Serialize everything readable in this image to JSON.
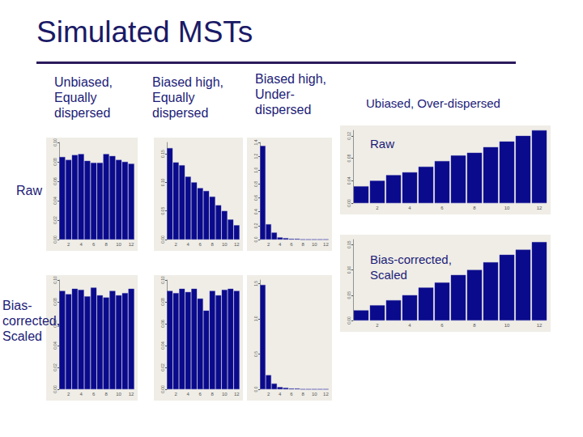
{
  "slide": {
    "title": "Simulated MSTs",
    "column_headers": [
      "Unbiased, Equally dispersed",
      "Biased high, Equally dispersed",
      "Biased high, Under-dispersed",
      "Ubiased, Over-dispersed"
    ],
    "row_labels": [
      "Raw",
      "Bias-corrected, Scaled"
    ],
    "panel_labels": [
      "Raw",
      "Bias-corrected, Scaled"
    ]
  },
  "chart_data": [
    {
      "type": "bar",
      "color": "#0a0a8c",
      "grid": false,
      "categories": [
        null,
        "2",
        null,
        "4",
        null,
        "6",
        null,
        "8",
        null,
        "10",
        null,
        "12"
      ],
      "values": [
        0.085,
        0.082,
        0.087,
        0.088,
        0.081,
        0.079,
        0.079,
        0.088,
        0.086,
        0.082,
        0.08,
        0.078
      ],
      "ylim": [
        0,
        0.1
      ],
      "yticks": [
        {
          "value": 0,
          "label": "0.00"
        },
        {
          "value": 0.02,
          "label": "0.02"
        },
        {
          "value": 0.04,
          "label": "0.04"
        },
        {
          "value": 0.06,
          "label": "0.06"
        },
        {
          "value": 0.08,
          "label": "0.08"
        },
        {
          "value": 0.1,
          "label": "0.10"
        }
      ]
    },
    {
      "type": "bar",
      "color": "#0a0a8c",
      "grid": false,
      "categories": [
        null,
        "2",
        null,
        "4",
        null,
        "6",
        null,
        "8",
        null,
        "10",
        null,
        "12"
      ],
      "values": [
        0.16,
        0.135,
        0.13,
        0.11,
        0.1,
        0.09,
        0.085,
        0.075,
        0.06,
        0.05,
        0.035,
        0.025
      ],
      "ylim": [
        0,
        0.17
      ],
      "yticks": [
        {
          "value": 0,
          "label": "0.00"
        },
        {
          "value": 0.05,
          "label": "0.05"
        },
        {
          "value": 0.1,
          "label": "0.10"
        },
        {
          "value": 0.15,
          "label": "0.15"
        }
      ]
    },
    {
      "type": "bar",
      "color": "#0a0a8c",
      "grid": false,
      "categories": [
        null,
        "2",
        null,
        "4",
        null,
        "6",
        null,
        "8",
        null,
        "10",
        null,
        "12"
      ],
      "values": [
        1.35,
        0.22,
        0.1,
        0.03,
        0.02,
        0.01,
        0.01,
        0,
        0,
        0,
        0,
        0
      ],
      "ylim": [
        0,
        1.4
      ],
      "yticks": [
        {
          "value": 0,
          "label": "0.0"
        },
        {
          "value": 0.2,
          "label": "0.2"
        },
        {
          "value": 0.4,
          "label": "0.4"
        },
        {
          "value": 0.6,
          "label": "0.6"
        },
        {
          "value": 0.8,
          "label": "0.8"
        },
        {
          "value": 1,
          "label": "1.0"
        },
        {
          "value": 1.2,
          "label": "1.2"
        },
        {
          "value": 1.4,
          "label": "1.4"
        }
      ]
    },
    {
      "type": "bar",
      "color": "#0a0a8c",
      "grid": false,
      "categories": [
        null,
        "2",
        null,
        "4",
        null,
        "6",
        null,
        "8",
        null,
        "10",
        null,
        "12"
      ],
      "values": [
        0.09,
        0.087,
        0.092,
        0.091,
        0.085,
        0.093,
        0.086,
        0.084,
        0.09,
        0.086,
        0.088,
        0.092
      ],
      "ylim": [
        0,
        0.1
      ],
      "yticks": [
        {
          "value": 0,
          "label": "0.00"
        },
        {
          "value": 0.02,
          "label": "0.02"
        },
        {
          "value": 0.04,
          "label": "0.04"
        },
        {
          "value": 0.06,
          "label": "0.06"
        },
        {
          "value": 0.08,
          "label": "0.08"
        },
        {
          "value": 0.1,
          "label": "0.10"
        }
      ]
    },
    {
      "type": "bar",
      "color": "#0a0a8c",
      "grid": false,
      "categories": [
        null,
        "2",
        null,
        "4",
        null,
        "6",
        null,
        "8",
        null,
        "10",
        null,
        "12"
      ],
      "values": [
        0.09,
        0.088,
        0.092,
        0.089,
        0.092,
        0.083,
        0.072,
        0.09,
        0.086,
        0.091,
        0.092,
        0.09
      ],
      "ylim": [
        0,
        0.1
      ],
      "yticks": [
        {
          "value": 0,
          "label": "0.00"
        },
        {
          "value": 0.02,
          "label": "0.02"
        },
        {
          "value": 0.04,
          "label": "0.04"
        },
        {
          "value": 0.06,
          "label": "0.06"
        },
        {
          "value": 0.08,
          "label": "0.08"
        },
        {
          "value": 0.1,
          "label": "0.10"
        }
      ]
    },
    {
      "type": "bar",
      "color": "#0a0a8c",
      "grid": false,
      "categories": [
        null,
        "2",
        null,
        "4",
        null,
        "6",
        null,
        "8",
        null,
        "10",
        null,
        "12"
      ],
      "values": [
        1.48,
        0.2,
        0.08,
        0.03,
        0.02,
        0.01,
        0.01,
        0,
        0,
        0,
        0,
        0
      ],
      "ylim": [
        0,
        1.55
      ],
      "yticks": [
        {
          "value": 0,
          "label": "0.0"
        },
        {
          "value": 0.5,
          "label": "0.5"
        },
        {
          "value": 1,
          "label": "1.0"
        },
        {
          "value": 1.5,
          "label": "1.5"
        }
      ]
    },
    {
      "type": "bar",
      "color": "#0a0a8c",
      "grid": false,
      "categories": [
        null,
        "2",
        null,
        "4",
        null,
        "6",
        null,
        "8",
        null,
        "10",
        null,
        "12"
      ],
      "values": [
        0.03,
        0.04,
        0.05,
        0.055,
        0.065,
        0.075,
        0.085,
        0.09,
        0.1,
        0.11,
        0.12,
        0.13
      ],
      "ylim": [
        0,
        0.13
      ],
      "yticks": [
        {
          "value": 0,
          "label": "0.00"
        },
        {
          "value": 0.04,
          "label": "0.04"
        },
        {
          "value": 0.08,
          "label": "0.08"
        },
        {
          "value": 0.12,
          "label": "0.12"
        }
      ]
    },
    {
      "type": "bar",
      "color": "#0a0a8c",
      "grid": false,
      "categories": [
        null,
        "2",
        null,
        "4",
        null,
        "6",
        null,
        "8",
        null,
        "10",
        null,
        "12"
      ],
      "values": [
        0.02,
        0.03,
        0.04,
        0.05,
        0.065,
        0.075,
        0.09,
        0.1,
        0.115,
        0.13,
        0.14,
        0.155
      ],
      "ylim": [
        0,
        0.16
      ],
      "yticks": [
        {
          "value": 0,
          "label": "0.00"
        },
        {
          "value": 0.05,
          "label": "0.05"
        },
        {
          "value": 0.1,
          "label": "0.10"
        },
        {
          "value": 0.15,
          "label": "0.15"
        }
      ]
    }
  ]
}
